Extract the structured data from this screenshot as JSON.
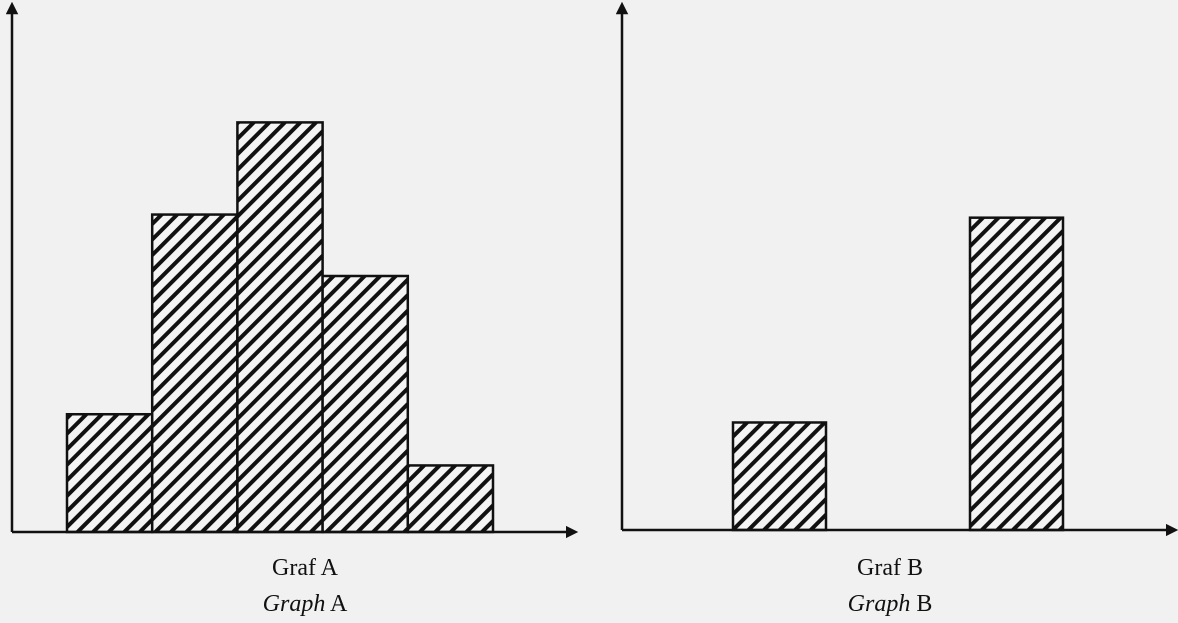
{
  "chart_data": [
    {
      "type": "bar",
      "title": "Graf A",
      "subtitle": "Graph A",
      "categories": [
        null,
        null,
        null,
        null,
        null
      ],
      "values": [
        23,
        62,
        80,
        50,
        13
      ],
      "ylim": [
        0,
        100
      ],
      "color": "#111111"
    },
    {
      "type": "bar",
      "title": "Graf B",
      "subtitle": "Graph B",
      "categories": [
        null,
        null
      ],
      "values": [
        21,
        61
      ],
      "ylim": [
        0,
        100
      ],
      "color": "#111111"
    }
  ]
}
